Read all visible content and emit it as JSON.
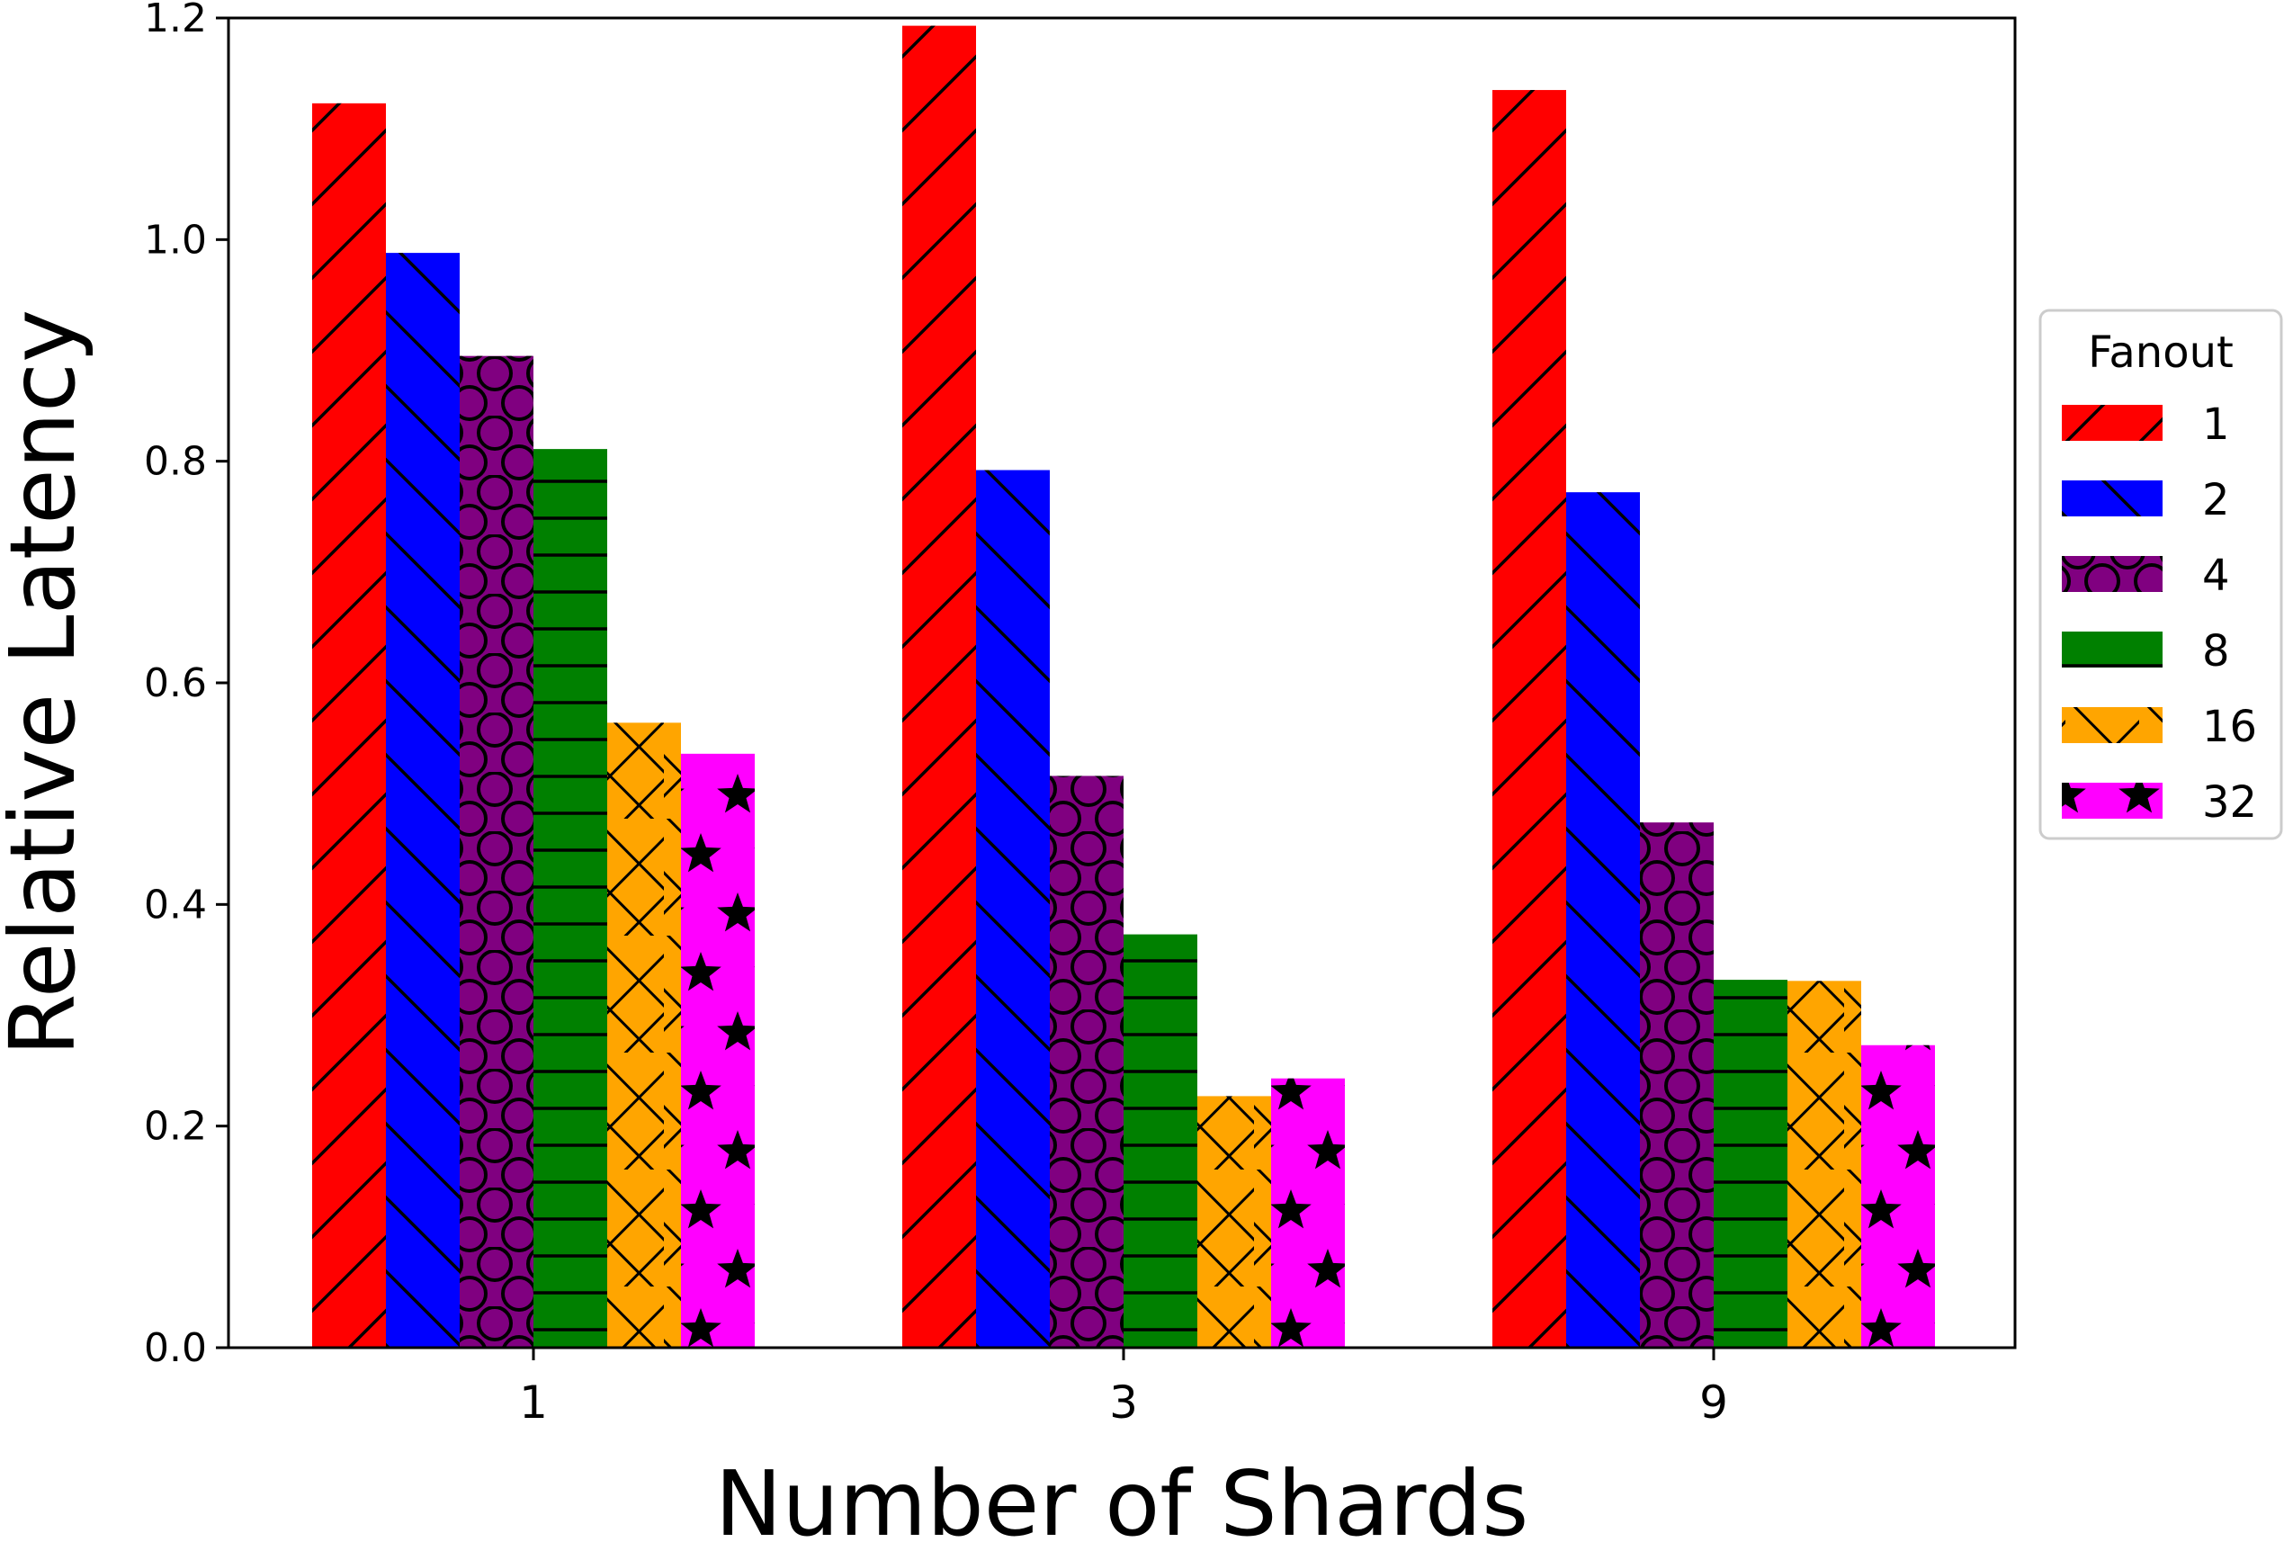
{
  "chart_data": {
    "type": "bar",
    "xlabel": "Number of Shards",
    "ylabel": "Relative Latency",
    "categories": [
      "1",
      "3",
      "9"
    ],
    "ylim": [
      0,
      1.2
    ],
    "yticks": [
      "0.0",
      "0.2",
      "0.4",
      "0.6",
      "0.8",
      "1.0",
      "1.2"
    ],
    "grid": false,
    "legend": {
      "title": "Fanout",
      "placement": "right"
    },
    "series": [
      {
        "name": "1",
        "color": "#ff0000",
        "pattern": "diagonal-forward",
        "values": [
          1.123,
          1.193,
          1.135
        ]
      },
      {
        "name": "2",
        "color": "#0000ff",
        "pattern": "diagonal-back",
        "values": [
          0.988,
          0.792,
          0.772
        ]
      },
      {
        "name": "4",
        "color": "#800080",
        "pattern": "circles",
        "values": [
          0.895,
          0.516,
          0.474
        ]
      },
      {
        "name": "8",
        "color": "#008000",
        "pattern": "horizontal",
        "values": [
          0.811,
          0.373,
          0.332
        ]
      },
      {
        "name": "16",
        "color": "#ffa500",
        "pattern": "crosshatch",
        "values": [
          0.564,
          0.227,
          0.331
        ]
      },
      {
        "name": "32",
        "color": "#ff00ff",
        "pattern": "stars",
        "values": [
          0.536,
          0.243,
          0.273
        ]
      }
    ]
  }
}
